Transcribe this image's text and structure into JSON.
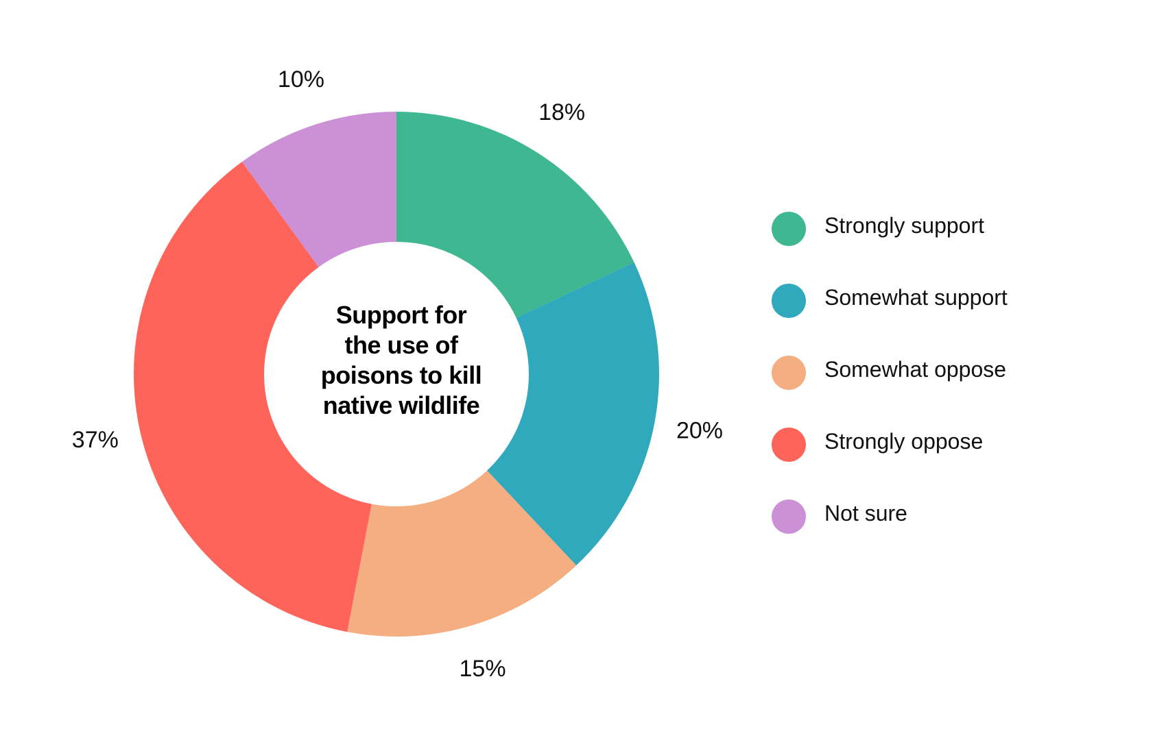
{
  "chart_data": {
    "type": "pie",
    "title_lines": [
      "Support for",
      "the use of",
      "poisons to kill",
      "native wildlife"
    ],
    "categories": [
      "Strongly support",
      "Somewhat support",
      "Somewhat oppose",
      "Strongly oppose",
      "Not sure"
    ],
    "values": [
      18,
      20,
      15,
      37,
      10
    ],
    "value_labels": [
      "18%",
      "20%",
      "15%",
      "37%",
      "10%"
    ],
    "colors": [
      "#3fb892",
      "#31a9bc",
      "#f5ae82",
      "#ff645a",
      "#cb90d6"
    ],
    "legend_placement": "right",
    "donut": true
  }
}
